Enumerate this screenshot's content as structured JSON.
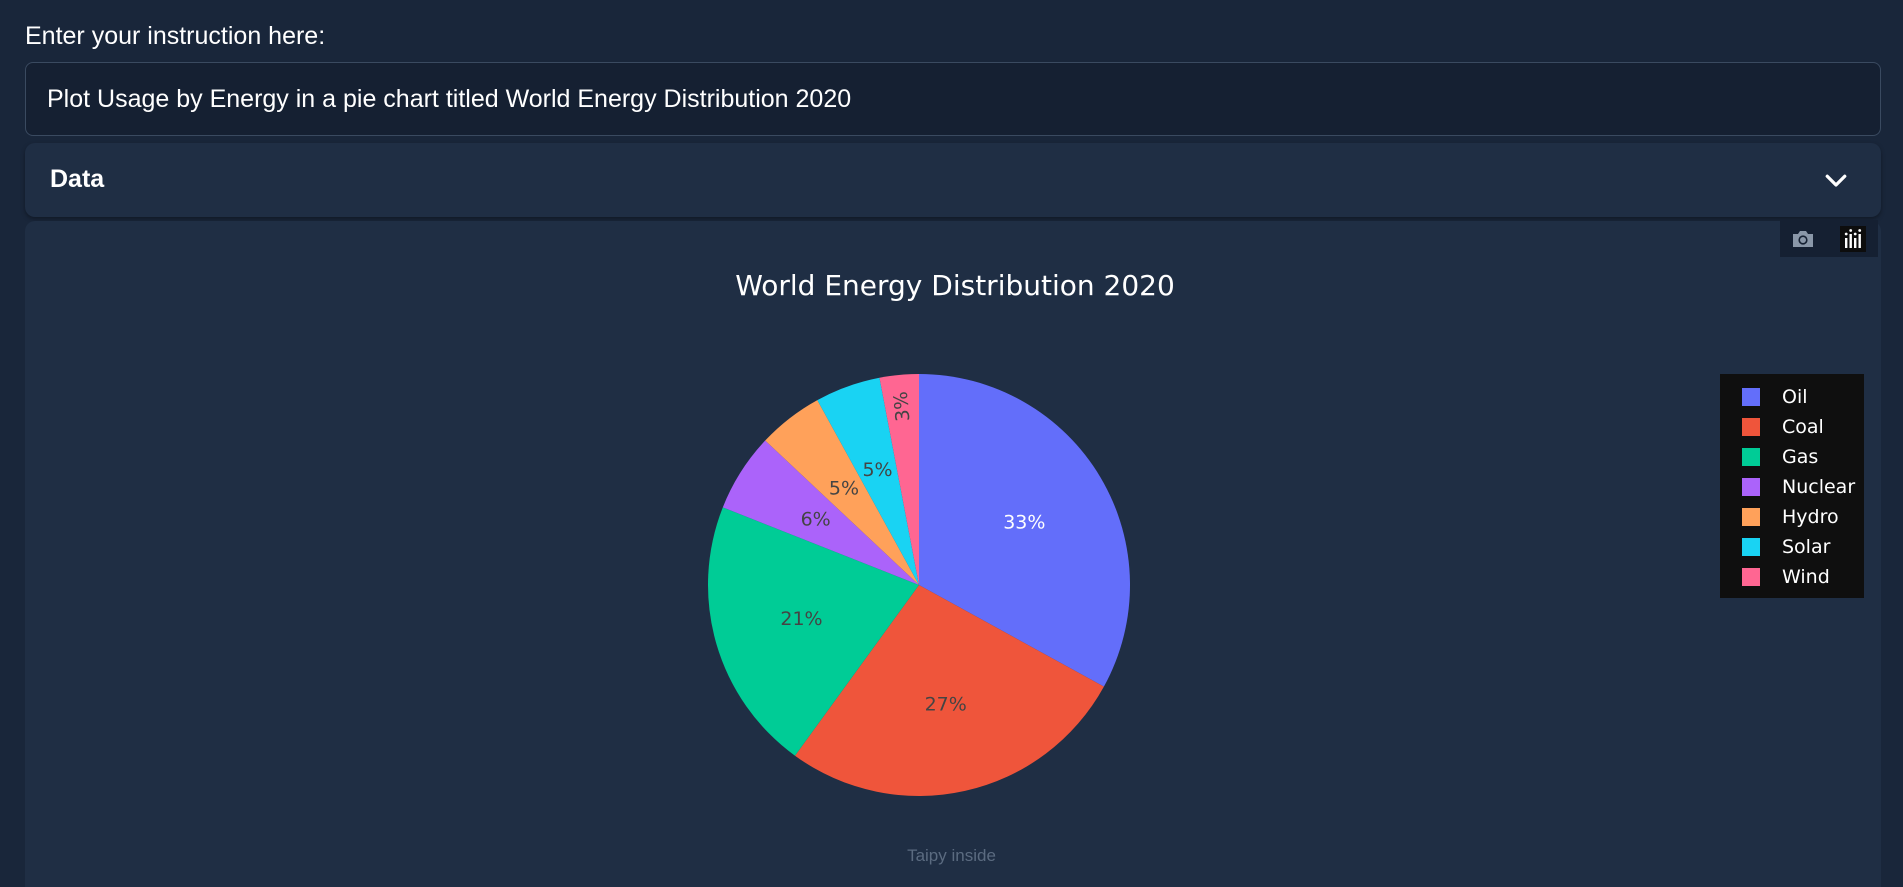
{
  "instruction": {
    "label": "Enter your instruction here:",
    "value": "Plot Usage by Energy in a pie chart titled World Energy Distribution 2020"
  },
  "data_section": {
    "title": "Data"
  },
  "footer": {
    "text": "Taipy inside"
  },
  "icons": {
    "expander": "chevron-down-icon",
    "snapshot": "camera-icon",
    "logo": "plotly-logo-icon"
  },
  "chart_data": {
    "type": "pie",
    "title": "World Energy Distribution 2020",
    "categories": [
      "Oil",
      "Coal",
      "Gas",
      "Nuclear",
      "Hydro",
      "Solar",
      "Wind"
    ],
    "values": [
      33,
      27,
      21,
      6,
      5,
      5,
      3
    ],
    "labels": [
      "33%",
      "27%",
      "21%",
      "6%",
      "5%",
      "5%",
      "3%"
    ],
    "colors": [
      "#636efa",
      "#ef553b",
      "#00cc96",
      "#ab63fa",
      "#ffa15a",
      "#19d3f3",
      "#ff6692"
    ],
    "label_colors": [
      "#ffffff",
      "#444444",
      "#444444",
      "#444444",
      "#444444",
      "#444444",
      "#444444"
    ],
    "legend_position": "top-right",
    "direction": "clockwise"
  }
}
